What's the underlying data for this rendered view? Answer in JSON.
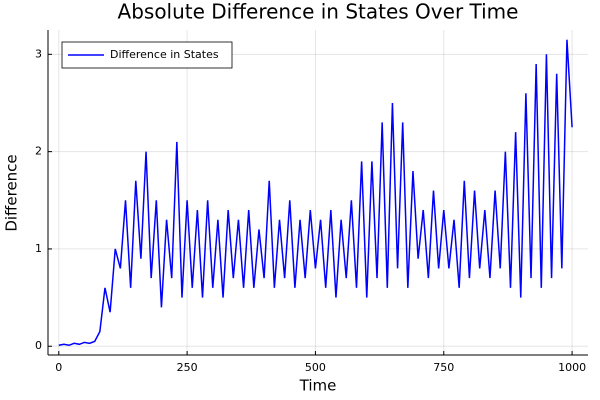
{
  "chart_data": {
    "type": "line",
    "title": "Absolute Difference in States Over Time",
    "x_label": "Time",
    "y_label": "Difference",
    "x": [
      0,
      10,
      20,
      30,
      40,
      50,
      60,
      70,
      80,
      90,
      100,
      110,
      120,
      130,
      140,
      150,
      160,
      170,
      180,
      190,
      200,
      210,
      220,
      230,
      240,
      250,
      260,
      270,
      280,
      290,
      300,
      310,
      320,
      330,
      340,
      350,
      360,
      370,
      380,
      390,
      400,
      410,
      420,
      430,
      440,
      450,
      460,
      470,
      480,
      490,
      500,
      510,
      520,
      530,
      540,
      550,
      560,
      570,
      580,
      590,
      600,
      610,
      620,
      630,
      640,
      650,
      660,
      670,
      680,
      690,
      700,
      710,
      720,
      730,
      740,
      750,
      760,
      770,
      780,
      790,
      800,
      810,
      820,
      830,
      840,
      850,
      860,
      870,
      880,
      890,
      900,
      910,
      920,
      930,
      940,
      950,
      960,
      970,
      980,
      990,
      1000
    ],
    "series": [
      {
        "name": "Difference in States",
        "color": "#0000ff",
        "values": [
          0.01,
          0.02,
          0.01,
          0.03,
          0.02,
          0.04,
          0.03,
          0.05,
          0.15,
          0.6,
          0.35,
          1.0,
          0.8,
          1.5,
          0.6,
          1.7,
          0.9,
          2.0,
          0.7,
          1.5,
          0.4,
          1.3,
          0.7,
          2.1,
          0.5,
          1.5,
          0.6,
          1.4,
          0.5,
          1.5,
          0.6,
          1.3,
          0.5,
          1.4,
          0.7,
          1.3,
          0.6,
          1.4,
          0.6,
          1.2,
          0.7,
          1.7,
          0.6,
          1.3,
          0.7,
          1.5,
          0.6,
          1.3,
          0.7,
          1.4,
          0.8,
          1.3,
          0.6,
          1.4,
          0.5,
          1.3,
          0.7,
          1.5,
          0.6,
          1.9,
          0.5,
          1.9,
          0.7,
          2.3,
          0.6,
          2.5,
          0.8,
          2.3,
          0.6,
          1.8,
          0.9,
          1.4,
          0.7,
          1.6,
          0.8,
          1.4,
          0.8,
          1.3,
          0.6,
          1.7,
          0.7,
          1.6,
          0.8,
          1.4,
          0.7,
          1.6,
          0.8,
          2.0,
          0.6,
          2.2,
          0.5,
          2.6,
          0.7,
          2.9,
          0.6,
          3.0,
          0.7,
          2.8,
          0.8,
          3.15,
          2.25
        ]
      }
    ],
    "xlim": [
      -21,
      1031
    ],
    "ylim": [
      -0.09,
      3.25
    ],
    "xticks": [
      0,
      250,
      500,
      750,
      1000
    ],
    "yticks": [
      0,
      1,
      2,
      3
    ],
    "grid": true,
    "legend_position": "top-left"
  }
}
